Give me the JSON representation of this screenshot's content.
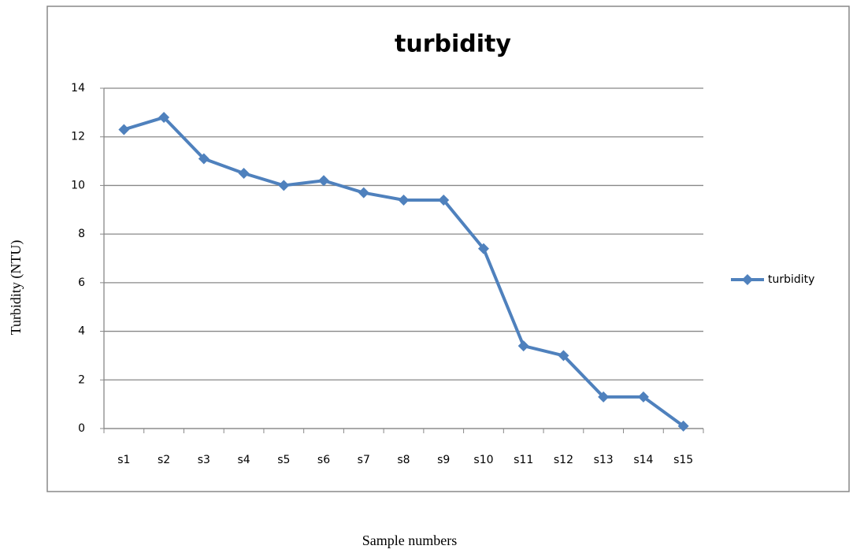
{
  "chart_data": {
    "type": "line",
    "title": "turbidity",
    "x_label": "Sample numbers",
    "y_label": "Turbidity (NTU)",
    "categories": [
      "s1",
      "s2",
      "s3",
      "s4",
      "s5",
      "s6",
      "s7",
      "s8",
      "s9",
      "s10",
      "s11",
      "s12",
      "s13",
      "s14",
      "s15"
    ],
    "series": [
      {
        "name": "turbidity",
        "color": "#4f81bd",
        "values": [
          12.3,
          12.8,
          11.1,
          10.5,
          10.0,
          10.2,
          9.7,
          9.4,
          9.4,
          7.4,
          3.4,
          3.0,
          1.3,
          1.3,
          0.1
        ]
      }
    ],
    "ylim": [
      0,
      14
    ],
    "yticks": [
      0,
      2,
      4,
      6,
      8,
      10,
      12,
      14
    ],
    "grid": true,
    "legend": "right"
  }
}
